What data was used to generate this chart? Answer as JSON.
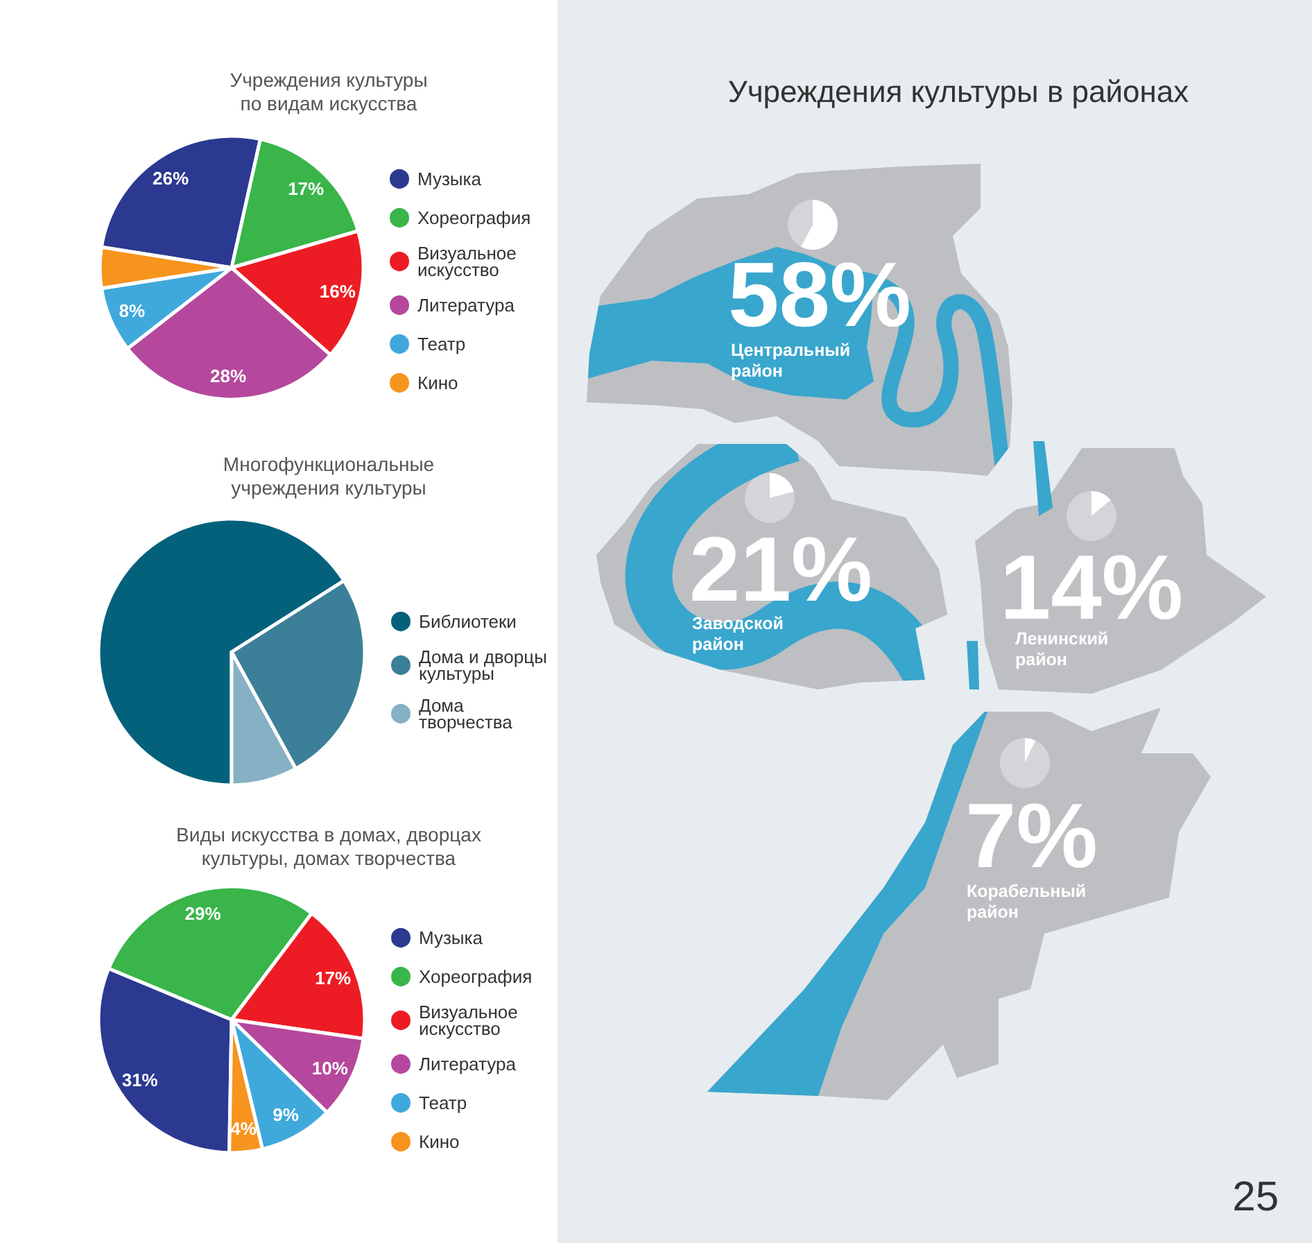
{
  "chart_data": [
    {
      "type": "pie",
      "title": "Учреждения культуры по видам искусства",
      "categories": [
        "Музыка",
        "Хореография",
        "Визуальное искусство",
        "Литература",
        "Театр",
        "Кино"
      ],
      "values": [
        26,
        17,
        16,
        28,
        8,
        5
      ],
      "value_labels": [
        "26%",
        "17%",
        "16%",
        "28%",
        "8%",
        null
      ],
      "colors": [
        "#2b3990",
        "#39b54a",
        "#ed1c24",
        "#b5489c",
        "#3fa9dc",
        "#f7941d"
      ],
      "legend": "right"
    },
    {
      "type": "pie",
      "title": "Многофункциональные учреждения культуры",
      "categories": [
        "Библиотеки",
        "Дома и дворцы культуры",
        "Дома творчества"
      ],
      "values": [
        66,
        26,
        8
      ],
      "colors": [
        "#03617c",
        "#3b7f98",
        "#86b0c4"
      ],
      "legend": "right"
    },
    {
      "type": "pie",
      "title": "Виды искусства в домах, дворцах культуры, домах творчества",
      "categories": [
        "Музыка",
        "Хореография",
        "Визуальное искусство",
        "Литература",
        "Театр",
        "Кино"
      ],
      "values": [
        31,
        29,
        17,
        10,
        9,
        4
      ],
      "value_labels": [
        "31%",
        "29%",
        "17%",
        "10%",
        "9%",
        "4%"
      ],
      "colors": [
        "#2b3990",
        "#39b54a",
        "#ed1c24",
        "#b5489c",
        "#3fa9dc",
        "#f7941d"
      ],
      "legend": "right"
    },
    {
      "type": "other",
      "title": "Учреждения культуры в районах",
      "categories": [
        "Центральный район",
        "Заводской район",
        "Ленинский район",
        "Корабельный район"
      ],
      "values": [
        58,
        21,
        14,
        7
      ],
      "value_labels": [
        "58%",
        "21%",
        "14%",
        "7%"
      ],
      "annotations": [
        "25"
      ]
    }
  ]
}
